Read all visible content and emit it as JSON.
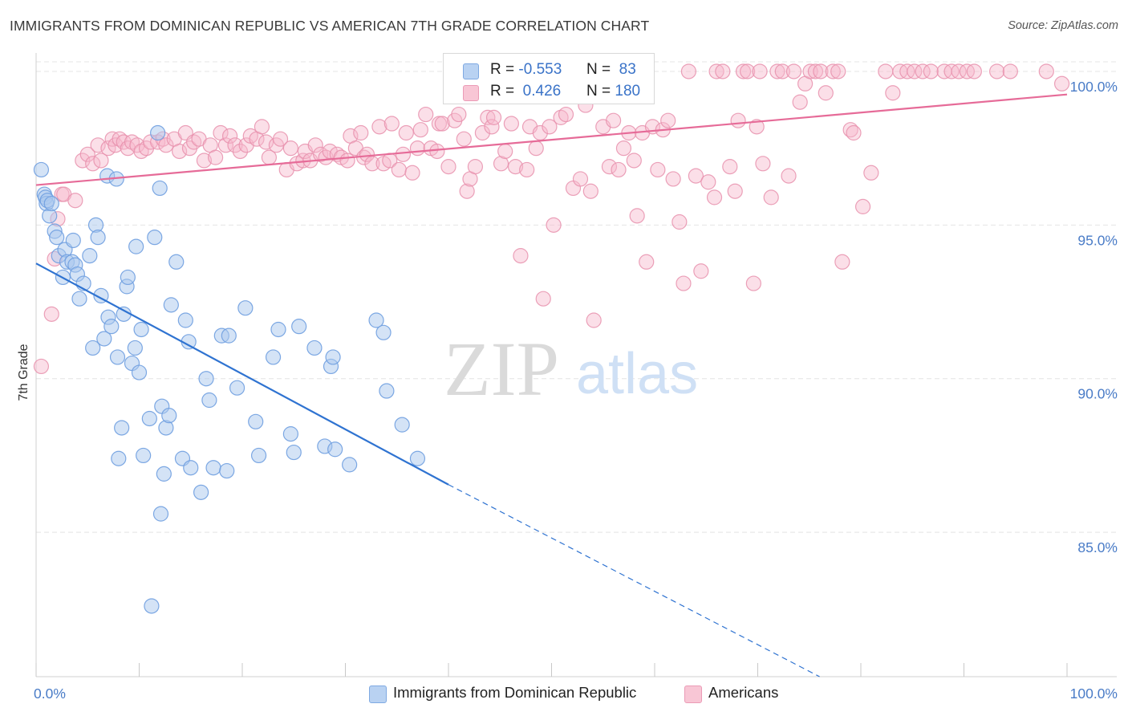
{
  "title": "IMMIGRANTS FROM DOMINICAN REPUBLIC VS AMERICAN 7TH GRADE CORRELATION CHART",
  "source": "Source: ZipAtlas.com",
  "watermark": {
    "zip": "ZIP",
    "atlas": "atlas"
  },
  "legend": {
    "r_label": "R =",
    "n_label": "N =",
    "series": [
      {
        "r": "-0.553",
        "n": "83"
      },
      {
        "r": "0.426",
        "n": "180"
      }
    ]
  },
  "colors": {
    "blue_fill": "#a9c7ee",
    "blue_stroke": "#6f9fe0",
    "blue_line": "#2f73d1",
    "pink_fill": "#f6b8cb",
    "pink_stroke": "#e891ad",
    "pink_line": "#e66b98",
    "tick_label": "#4a7cc7",
    "grid": "#e4e4e4"
  },
  "chart_data": {
    "type": "scatter",
    "title": "IMMIGRANTS FROM DOMINICAN REPUBLIC VS AMERICAN 7TH GRADE CORRELATION CHART",
    "xlabel": "",
    "ylabel": "7th Grade",
    "xlim": [
      0,
      100
    ],
    "ylim": [
      80.3,
      100.6
    ],
    "x_tick_labels": [
      "0.0%",
      "100.0%"
    ],
    "x_ticks": [
      0,
      10,
      20,
      30,
      40,
      50,
      60,
      70,
      80,
      90,
      100
    ],
    "y_ticks": [
      85,
      90,
      95,
      100
    ],
    "y_tick_labels": [
      "85.0%",
      "90.0%",
      "95.0%",
      "100.0%"
    ],
    "grid": true,
    "legend_position": "top-center",
    "series": [
      {
        "name": "Immigrants from Dominican Republic",
        "r": -0.553,
        "n": 83,
        "trend": {
          "x0": 0,
          "y0": 93.75,
          "x1": 40,
          "y1": 86.55,
          "dashed_to_x": 76,
          "dashed_to_y": 80.3
        },
        "points": [
          [
            0.5,
            96.8
          ],
          [
            0.8,
            96.0
          ],
          [
            0.9,
            95.9
          ],
          [
            1.0,
            95.7
          ],
          [
            1.1,
            95.8
          ],
          [
            1.3,
            95.3
          ],
          [
            1.5,
            95.7
          ],
          [
            1.8,
            94.8
          ],
          [
            2.0,
            94.6
          ],
          [
            2.2,
            94.0
          ],
          [
            2.6,
            93.3
          ],
          [
            2.8,
            94.2
          ],
          [
            3.0,
            93.8
          ],
          [
            3.5,
            93.8
          ],
          [
            3.6,
            94.5
          ],
          [
            3.8,
            93.7
          ],
          [
            4.0,
            93.4
          ],
          [
            4.2,
            92.6
          ],
          [
            4.6,
            93.1
          ],
          [
            5.2,
            94.0
          ],
          [
            5.5,
            91.0
          ],
          [
            5.8,
            95.0
          ],
          [
            6.0,
            94.6
          ],
          [
            6.3,
            92.7
          ],
          [
            6.6,
            91.3
          ],
          [
            6.9,
            96.6
          ],
          [
            7.0,
            92.0
          ],
          [
            7.3,
            91.7
          ],
          [
            7.8,
            96.5
          ],
          [
            7.9,
            90.7
          ],
          [
            8.0,
            87.4
          ],
          [
            8.3,
            88.4
          ],
          [
            8.5,
            92.1
          ],
          [
            8.8,
            93.0
          ],
          [
            8.9,
            93.3
          ],
          [
            9.3,
            90.5
          ],
          [
            9.6,
            91.0
          ],
          [
            9.7,
            94.3
          ],
          [
            10.0,
            90.2
          ],
          [
            10.2,
            91.6
          ],
          [
            10.4,
            87.5
          ],
          [
            11.0,
            88.7
          ],
          [
            11.5,
            94.6
          ],
          [
            11.8,
            98.0
          ],
          [
            12.0,
            96.2
          ],
          [
            12.1,
            85.6
          ],
          [
            12.2,
            89.1
          ],
          [
            12.4,
            86.9
          ],
          [
            12.6,
            88.4
          ],
          [
            12.9,
            88.8
          ],
          [
            13.1,
            92.4
          ],
          [
            13.6,
            93.8
          ],
          [
            14.2,
            87.4
          ],
          [
            14.5,
            91.9
          ],
          [
            14.8,
            91.2
          ],
          [
            15.0,
            87.1
          ],
          [
            16.0,
            86.3
          ],
          [
            16.5,
            90.0
          ],
          [
            16.8,
            89.3
          ],
          [
            17.2,
            87.1
          ],
          [
            18.0,
            91.4
          ],
          [
            18.5,
            87.0
          ],
          [
            18.7,
            91.4
          ],
          [
            19.5,
            89.7
          ],
          [
            20.3,
            92.3
          ],
          [
            21.3,
            88.6
          ],
          [
            21.6,
            87.5
          ],
          [
            23.0,
            90.7
          ],
          [
            23.5,
            91.6
          ],
          [
            24.7,
            88.2
          ],
          [
            25.0,
            87.6
          ],
          [
            25.5,
            91.7
          ],
          [
            27.0,
            91.0
          ],
          [
            28.0,
            87.8
          ],
          [
            28.6,
            90.4
          ],
          [
            28.8,
            90.7
          ],
          [
            29.0,
            87.7
          ],
          [
            30.4,
            87.2
          ],
          [
            33.0,
            91.9
          ],
          [
            33.7,
            91.5
          ],
          [
            34.0,
            89.6
          ],
          [
            35.5,
            88.5
          ],
          [
            37.0,
            87.4
          ],
          [
            11.2,
            82.6
          ]
        ]
      },
      {
        "name": "Americans",
        "r": 0.426,
        "n": 180,
        "trend": {
          "x0": 0,
          "y0": 96.3,
          "x1": 100,
          "y1": 99.25
        },
        "points": [
          [
            0.5,
            90.4
          ],
          [
            1.5,
            92.1
          ],
          [
            1.8,
            93.9
          ],
          [
            2.1,
            95.2
          ],
          [
            2.5,
            96.0
          ],
          [
            2.7,
            96.0
          ],
          [
            3.8,
            95.8
          ],
          [
            4.5,
            97.1
          ],
          [
            5.0,
            97.3
          ],
          [
            5.5,
            97.0
          ],
          [
            6.0,
            97.6
          ],
          [
            6.3,
            97.1
          ],
          [
            7.0,
            97.5
          ],
          [
            7.4,
            97.8
          ],
          [
            7.7,
            97.6
          ],
          [
            8.1,
            97.8
          ],
          [
            8.5,
            97.7
          ],
          [
            8.9,
            97.5
          ],
          [
            9.3,
            97.7
          ],
          [
            9.8,
            97.6
          ],
          [
            10.2,
            97.4
          ],
          [
            10.7,
            97.5
          ],
          [
            11.1,
            97.7
          ],
          [
            11.8,
            97.7
          ],
          [
            12.3,
            97.8
          ],
          [
            12.6,
            97.6
          ],
          [
            13.4,
            97.8
          ],
          [
            13.9,
            97.4
          ],
          [
            14.5,
            98.0
          ],
          [
            14.9,
            97.5
          ],
          [
            15.3,
            97.7
          ],
          [
            15.8,
            97.8
          ],
          [
            16.3,
            97.1
          ],
          [
            16.9,
            97.6
          ],
          [
            17.4,
            97.2
          ],
          [
            17.9,
            98.0
          ],
          [
            18.4,
            97.6
          ],
          [
            18.8,
            97.9
          ],
          [
            19.3,
            97.6
          ],
          [
            19.8,
            97.4
          ],
          [
            20.4,
            97.6
          ],
          [
            20.8,
            97.9
          ],
          [
            21.4,
            97.8
          ],
          [
            21.9,
            98.2
          ],
          [
            22.3,
            97.7
          ],
          [
            22.6,
            97.2
          ],
          [
            23.3,
            97.6
          ],
          [
            23.7,
            97.8
          ],
          [
            24.3,
            96.8
          ],
          [
            24.7,
            97.5
          ],
          [
            25.3,
            97.0
          ],
          [
            25.9,
            97.1
          ],
          [
            26.1,
            97.4
          ],
          [
            26.6,
            97.1
          ],
          [
            27.1,
            97.6
          ],
          [
            27.6,
            97.3
          ],
          [
            28.1,
            97.2
          ],
          [
            28.5,
            97.4
          ],
          [
            29.2,
            97.3
          ],
          [
            29.6,
            97.2
          ],
          [
            30.2,
            97.1
          ],
          [
            30.5,
            97.9
          ],
          [
            31.0,
            97.5
          ],
          [
            31.5,
            98.0
          ],
          [
            31.8,
            97.2
          ],
          [
            32.1,
            97.3
          ],
          [
            32.6,
            97.0
          ],
          [
            33.3,
            98.2
          ],
          [
            33.7,
            97.0
          ],
          [
            34.3,
            97.1
          ],
          [
            34.5,
            98.3
          ],
          [
            35.2,
            96.8
          ],
          [
            35.6,
            97.3
          ],
          [
            35.9,
            98.0
          ],
          [
            36.5,
            96.7
          ],
          [
            37.0,
            97.5
          ],
          [
            37.3,
            98.1
          ],
          [
            37.8,
            98.6
          ],
          [
            38.3,
            97.5
          ],
          [
            38.9,
            97.4
          ],
          [
            39.1,
            98.3
          ],
          [
            39.4,
            98.3
          ],
          [
            40.0,
            96.9
          ],
          [
            40.6,
            98.4
          ],
          [
            41.0,
            98.6
          ],
          [
            41.5,
            97.8
          ],
          [
            41.8,
            96.1
          ],
          [
            42.1,
            96.5
          ],
          [
            42.6,
            96.9
          ],
          [
            43.3,
            98.0
          ],
          [
            43.8,
            98.5
          ],
          [
            44.2,
            98.2
          ],
          [
            44.4,
            98.5
          ],
          [
            45.1,
            97.0
          ],
          [
            45.5,
            97.4
          ],
          [
            46.1,
            98.3
          ],
          [
            46.5,
            96.9
          ],
          [
            47.0,
            94.0
          ],
          [
            47.6,
            96.8
          ],
          [
            47.9,
            98.2
          ],
          [
            48.5,
            97.5
          ],
          [
            48.9,
            98.0
          ],
          [
            49.2,
            92.6
          ],
          [
            49.8,
            98.2
          ],
          [
            50.2,
            95.0
          ],
          [
            50.9,
            98.5
          ],
          [
            51.4,
            98.6
          ],
          [
            52.1,
            96.2
          ],
          [
            52.8,
            96.5
          ],
          [
            53.3,
            98.9
          ],
          [
            53.8,
            96.1
          ],
          [
            54.1,
            91.9
          ],
          [
            55.0,
            98.2
          ],
          [
            55.6,
            96.9
          ],
          [
            56.0,
            98.4
          ],
          [
            56.5,
            96.8
          ],
          [
            57.0,
            97.5
          ],
          [
            57.5,
            98.0
          ],
          [
            58.0,
            97.1
          ],
          [
            58.3,
            95.3
          ],
          [
            58.8,
            98.0
          ],
          [
            59.2,
            93.8
          ],
          [
            59.8,
            98.2
          ],
          [
            60.3,
            96.8
          ],
          [
            60.8,
            98.1
          ],
          [
            61.3,
            98.4
          ],
          [
            61.8,
            96.5
          ],
          [
            62.4,
            95.1
          ],
          [
            62.8,
            93.1
          ],
          [
            63.3,
            100.0
          ],
          [
            64.0,
            96.6
          ],
          [
            64.5,
            93.5
          ],
          [
            65.2,
            96.4
          ],
          [
            65.8,
            95.9
          ],
          [
            66.0,
            100.0
          ],
          [
            66.6,
            100.0
          ],
          [
            67.3,
            96.9
          ],
          [
            67.8,
            96.1
          ],
          [
            68.1,
            98.4
          ],
          [
            68.6,
            100.0
          ],
          [
            69.0,
            100.0
          ],
          [
            69.6,
            93.1
          ],
          [
            69.9,
            98.2
          ],
          [
            70.2,
            100.0
          ],
          [
            70.5,
            97.0
          ],
          [
            71.3,
            95.9
          ],
          [
            71.9,
            100.0
          ],
          [
            72.4,
            100.0
          ],
          [
            73.0,
            96.6
          ],
          [
            73.5,
            100.0
          ],
          [
            74.1,
            99.0
          ],
          [
            74.6,
            99.6
          ],
          [
            75.1,
            100.0
          ],
          [
            75.6,
            100.0
          ],
          [
            76.1,
            100.0
          ],
          [
            76.6,
            99.3
          ],
          [
            77.3,
            100.0
          ],
          [
            77.8,
            100.0
          ],
          [
            78.2,
            93.8
          ],
          [
            79.0,
            98.1
          ],
          [
            79.3,
            98.0
          ],
          [
            80.2,
            95.6
          ],
          [
            81.0,
            96.7
          ],
          [
            82.4,
            100.0
          ],
          [
            83.1,
            99.3
          ],
          [
            83.8,
            100.0
          ],
          [
            84.5,
            100.0
          ],
          [
            85.2,
            100.0
          ],
          [
            86.0,
            100.0
          ],
          [
            86.8,
            100.0
          ],
          [
            88.1,
            100.0
          ],
          [
            88.8,
            100.0
          ],
          [
            89.5,
            100.0
          ],
          [
            90.3,
            100.0
          ],
          [
            91.0,
            100.0
          ],
          [
            93.2,
            100.0
          ],
          [
            94.5,
            100.0
          ],
          [
            98.0,
            100.0
          ],
          [
            99.5,
            99.6
          ]
        ]
      }
    ]
  },
  "bottom_legend": [
    {
      "label": "Immigrants from Dominican Republic"
    },
    {
      "label": "Americans"
    }
  ]
}
